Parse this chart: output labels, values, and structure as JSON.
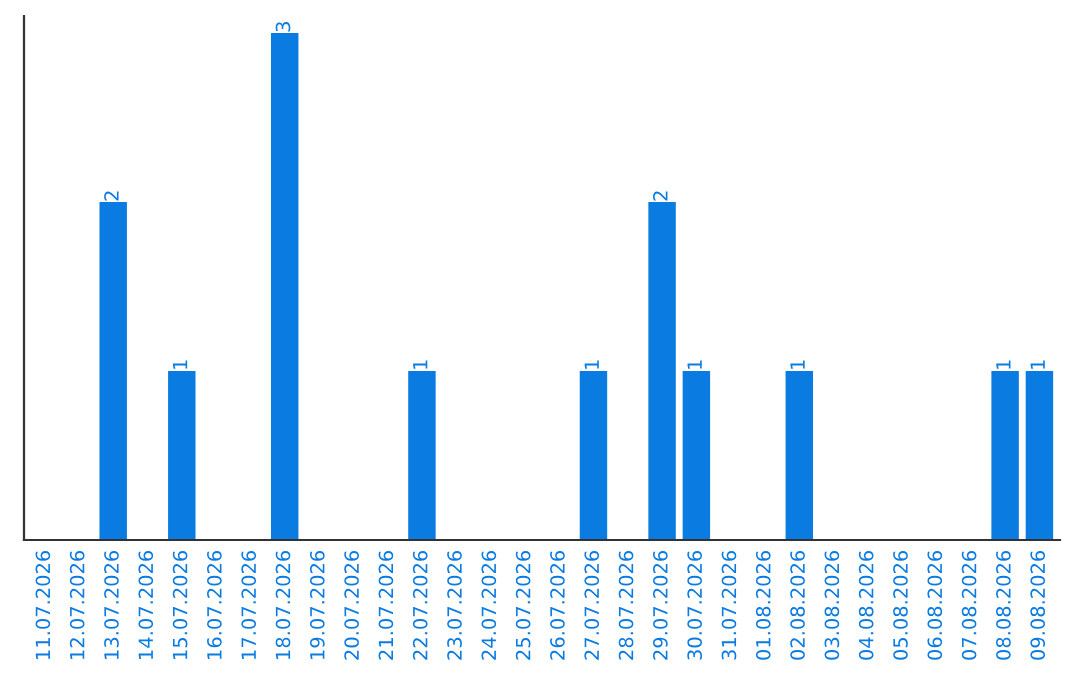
{
  "chart_data": {
    "type": "bar",
    "categories": [
      "11.07.2026",
      "12.07.2026",
      "13.07.2026",
      "14.07.2026",
      "15.07.2026",
      "16.07.2026",
      "17.07.2026",
      "18.07.2026",
      "19.07.2026",
      "20.07.2026",
      "21.07.2026",
      "22.07.2026",
      "23.07.2026",
      "24.07.2026",
      "25.07.2026",
      "26.07.2026",
      "27.07.2026",
      "28.07.2026",
      "29.07.2026",
      "30.07.2026",
      "31.07.2026",
      "01.08.2026",
      "02.08.2026",
      "03.08.2026",
      "04.08.2026",
      "05.08.2026",
      "06.08.2026",
      "07.08.2026",
      "08.08.2026",
      "09.08.2026"
    ],
    "values": [
      0,
      0,
      2,
      0,
      1,
      0,
      0,
      3,
      0,
      0,
      0,
      1,
      0,
      0,
      0,
      0,
      1,
      0,
      2,
      1,
      0,
      0,
      1,
      0,
      0,
      0,
      0,
      0,
      1,
      1
    ],
    "value_labels": [
      null,
      null,
      "2",
      null,
      "1",
      null,
      null,
      "3",
      null,
      null,
      null,
      "1",
      null,
      null,
      null,
      null,
      "1",
      null,
      "2",
      "1",
      null,
      null,
      "1",
      null,
      null,
      null,
      null,
      null,
      "1",
      "1"
    ],
    "color": "#0a7be0",
    "ylim": [
      0,
      3.1
    ],
    "tick_labels": "x",
    "grid": false,
    "legend": false
  }
}
